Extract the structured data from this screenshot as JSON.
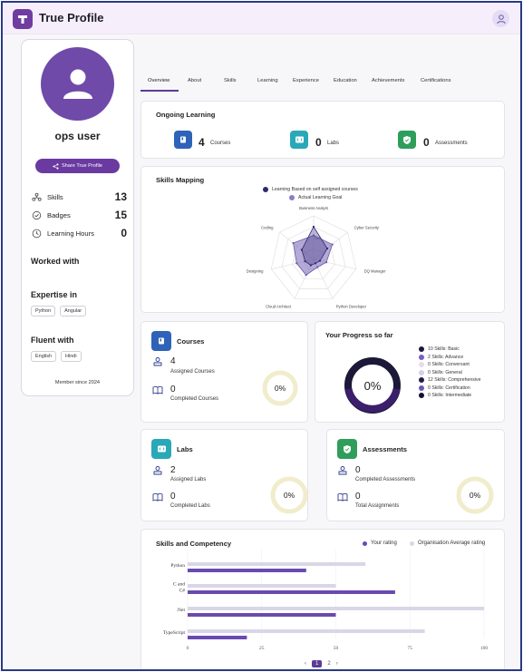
{
  "app": {
    "title": "True Profile",
    "logo_letter": "T"
  },
  "profile": {
    "username": "ops user",
    "share_label": "Share True Profile",
    "stats": [
      {
        "label": "Skills",
        "value": "13",
        "icon": "skills-icon"
      },
      {
        "label": "Badges",
        "value": "15",
        "icon": "badge-icon"
      },
      {
        "label": "Learning Hours",
        "value": "0",
        "icon": "clock-icon"
      }
    ],
    "worked_with_title": "Worked with",
    "expertise_title": "Expertise in",
    "expertise": [
      "Python",
      "Angular"
    ],
    "fluent_title": "Fluent with",
    "languages": [
      "English",
      "Hindi"
    ],
    "member_since": "Member since 2024"
  },
  "tabs": [
    "Overview",
    "About",
    "Skills",
    "Learning",
    "Experience",
    "Education",
    "Achievements",
    "Certifications"
  ],
  "ongoing": {
    "title": "Ongoing Learning",
    "items": [
      {
        "value": "4",
        "label": "Courses",
        "color": "#2e63b8"
      },
      {
        "value": "0",
        "label": "Labs",
        "color": "#29a8b8"
      },
      {
        "value": "0",
        "label": "Assessments",
        "color": "#2f9e5b"
      }
    ]
  },
  "skills_mapping": {
    "title": "Skills Mapping",
    "legend": [
      "Learning Based on self assigned courses",
      "Actual Learning Goal"
    ],
    "axes": [
      "Business Analyst",
      "Cyber Security",
      "DQ Manager",
      "Python Developer",
      "Cloud Architect",
      "Designing",
      "Coding"
    ],
    "scale_label": "100",
    "series_a": [
      75,
      40,
      15,
      10,
      15,
      20,
      35
    ],
    "series_b": [
      55,
      55,
      30,
      20,
      40,
      40,
      60
    ]
  },
  "courses": {
    "title": "Courses",
    "assigned_value": "4",
    "assigned_label": "Assigned Courses",
    "completed_value": "0",
    "completed_label": "Completed Courses",
    "percent": "0%"
  },
  "progress": {
    "title": "Your Progress so far",
    "percent": "0%",
    "legend": [
      {
        "label": "10 Skills: Basic",
        "color": "#1b1838"
      },
      {
        "label": "2 Skills: Advance",
        "color": "#7a5cc4"
      },
      {
        "label": "0 Skills: Conversant",
        "color": "#e3ddf0"
      },
      {
        "label": "0 Skills: General",
        "color": "#d5cee8"
      },
      {
        "label": "12 Skills: Comprehensive",
        "color": "#221c4a"
      },
      {
        "label": "0 Skills: Certification",
        "color": "#6b59b5"
      },
      {
        "label": "0 Skills: Intermediate",
        "color": "#140f30"
      }
    ]
  },
  "labs": {
    "title": "Labs",
    "assigned_value": "2",
    "assigned_label": "Assigned Labs",
    "completed_value": "0",
    "completed_label": "Completed Labs",
    "percent": "0%"
  },
  "assessments": {
    "title": "Assessments",
    "completed_value": "0",
    "completed_label": "Completed Assessments",
    "total_value": "0",
    "total_label": "Total Assignments",
    "percent": "0%"
  },
  "competency": {
    "title": "Skills and Competency",
    "legend": [
      "Your rating",
      "Organisation Average rating"
    ],
    "pagination": {
      "prev": "‹",
      "pages": [
        "1",
        "2"
      ],
      "active": "1",
      "next": "›"
    }
  },
  "chart_data": {
    "type": "bar",
    "orientation": "horizontal",
    "categories": [
      "Python",
      "C and C#",
      ".Net",
      "TypeScript"
    ],
    "category_labels": [
      [
        "Python"
      ],
      [
        "C and",
        "C#"
      ],
      [
        ".Net"
      ],
      [
        "TypeScript"
      ]
    ],
    "series": [
      {
        "name": "Organisation Average rating",
        "values": [
          60,
          50,
          100,
          80
        ],
        "color": "#d9d6e8"
      },
      {
        "name": "Your rating",
        "values": [
          40,
          70,
          50,
          20
        ],
        "color": "#6a4ab0"
      }
    ],
    "xlim": [
      0,
      100
    ],
    "xticks": [
      0,
      25,
      50,
      75,
      100
    ]
  }
}
